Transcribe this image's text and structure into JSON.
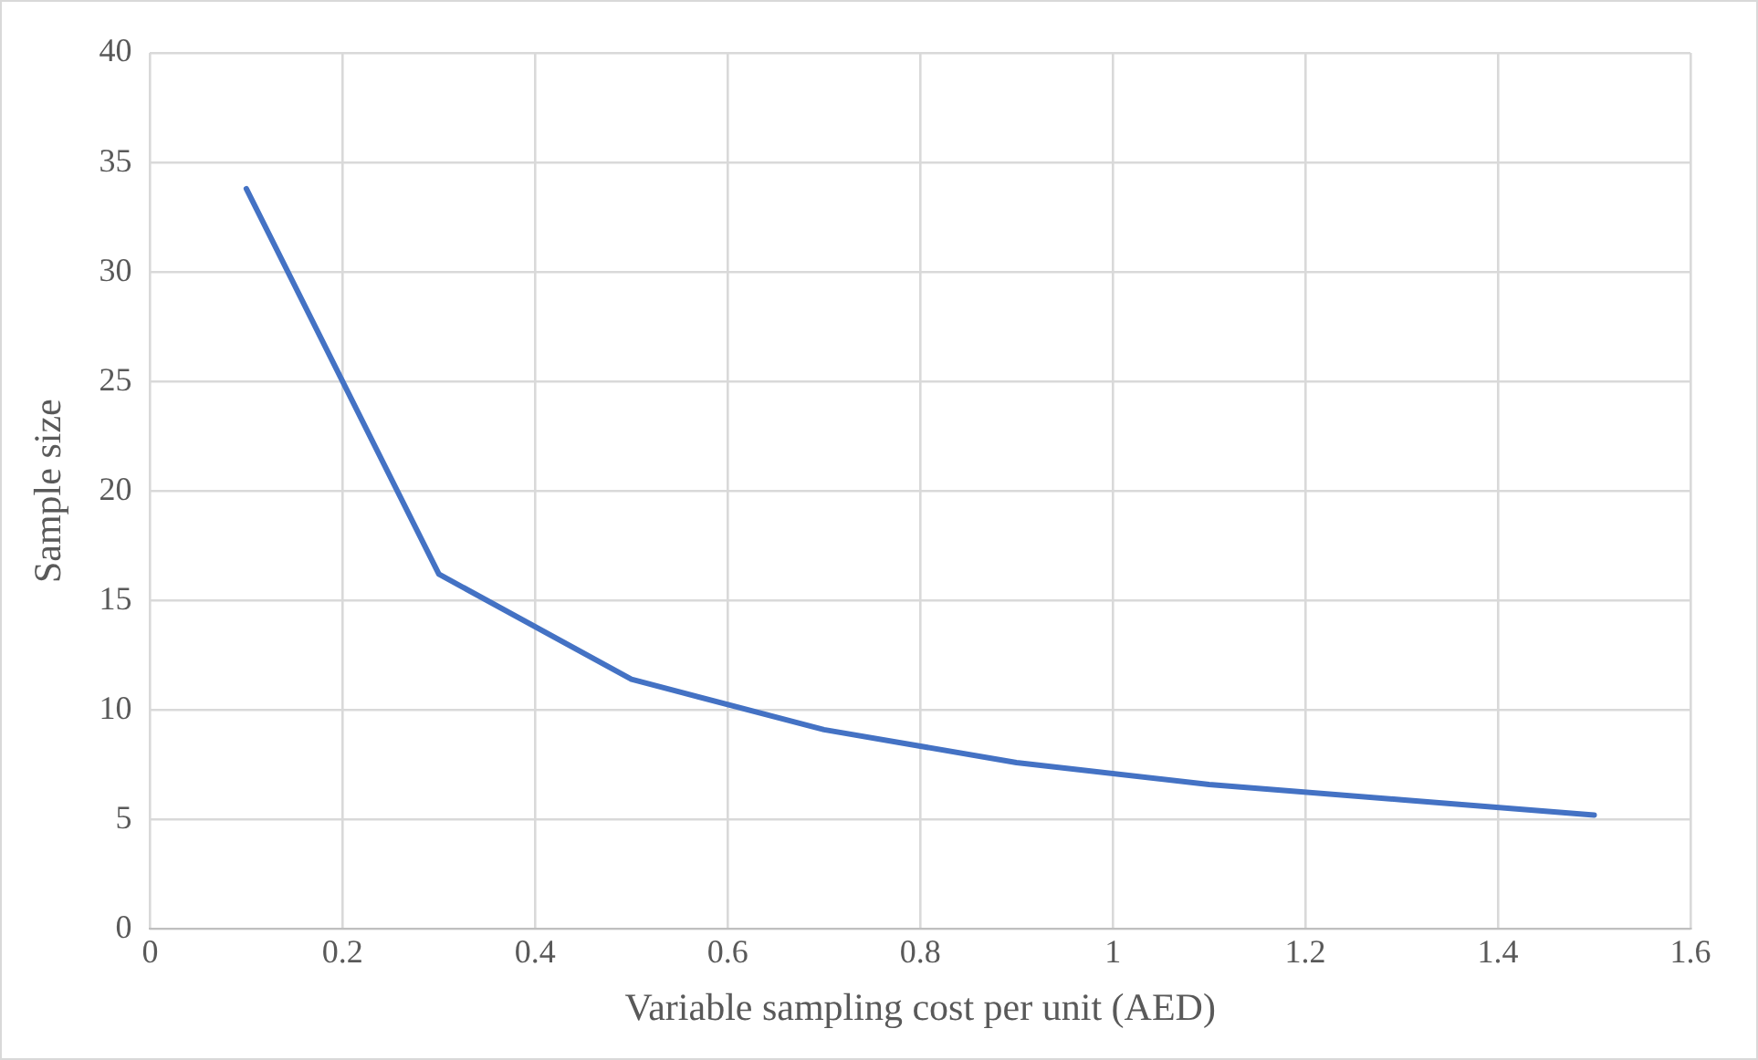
{
  "chart_data": {
    "type": "line",
    "xlabel": "Variable sampling cost per unit (AED)",
    "ylabel": "Sample size",
    "x": [
      0.1,
      0.3,
      0.5,
      0.7,
      0.9,
      1.1,
      1.3,
      1.5
    ],
    "series": [
      {
        "color": "#4472c4",
        "values": [
          33.8,
          16.2,
          11.4,
          9.1,
          7.6,
          6.6,
          5.9,
          5.2
        ]
      }
    ],
    "xlim": [
      0,
      1.6
    ],
    "xticks": [
      0,
      0.2,
      0.4,
      0.6,
      0.8,
      1,
      1.2,
      1.4,
      1.6
    ],
    "ylim": [
      0,
      40
    ],
    "yticks": [
      0,
      5,
      10,
      15,
      20,
      25,
      30,
      35,
      40
    ],
    "grid": true,
    "legend": false,
    "marker": "none",
    "line_style": "solid"
  }
}
